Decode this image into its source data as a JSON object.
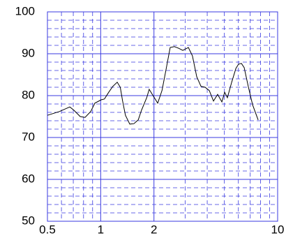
{
  "chart_data": {
    "type": "line",
    "xscale": "log",
    "grid": true,
    "xlim": [
      0.5,
      10
    ],
    "xticks": [
      0.5,
      1,
      2,
      10
    ],
    "x_minor_grid": [
      0.6,
      0.7,
      0.8,
      0.9,
      3,
      4,
      5,
      6,
      7,
      8,
      9
    ],
    "ylim": [
      50,
      100
    ],
    "yticks": [
      50,
      60,
      70,
      80,
      90,
      100
    ],
    "y_minor_grid": [
      52,
      54,
      56,
      58,
      62,
      64,
      66,
      68,
      72,
      74,
      76,
      78,
      82,
      84,
      86,
      88,
      92,
      94,
      96,
      98
    ],
    "grid_color": "#3a3ae0",
    "series": [
      {
        "color": "#000000",
        "x": [
          0.5,
          0.584,
          0.669,
          0.706,
          0.766,
          0.816,
          0.878,
          0.927,
          1.006,
          1.05,
          1.11,
          1.17,
          1.24,
          1.29,
          1.33,
          1.38,
          1.46,
          1.54,
          1.63,
          1.7,
          1.82,
          1.88,
          1.99,
          2.1,
          2.22,
          2.34,
          2.47,
          2.61,
          2.76,
          2.91,
          3.13,
          3.3,
          3.49,
          3.69,
          3.89,
          4.11,
          4.34,
          4.58,
          4.84,
          5.02,
          5.2,
          5.5,
          5.81,
          6.01,
          6.24,
          6.47,
          6.84,
          7.22,
          7.76
        ],
        "values": [
          75.3,
          76.2,
          77.3,
          76.5,
          75,
          74.8,
          76.2,
          78.2,
          79,
          79.2,
          80.8,
          82.2,
          83.2,
          82,
          78.7,
          75.3,
          73.2,
          73.3,
          74.2,
          76.5,
          79.5,
          81.5,
          79.8,
          78.2,
          81.2,
          86.2,
          91.5,
          91.7,
          91.3,
          90.8,
          91.5,
          89.5,
          84.5,
          82.2,
          82,
          81.2,
          78.7,
          80.3,
          78.5,
          80.8,
          79.5,
          83.2,
          86.5,
          87.5,
          87.7,
          86.7,
          82,
          77.8,
          74.2
        ]
      }
    ]
  }
}
